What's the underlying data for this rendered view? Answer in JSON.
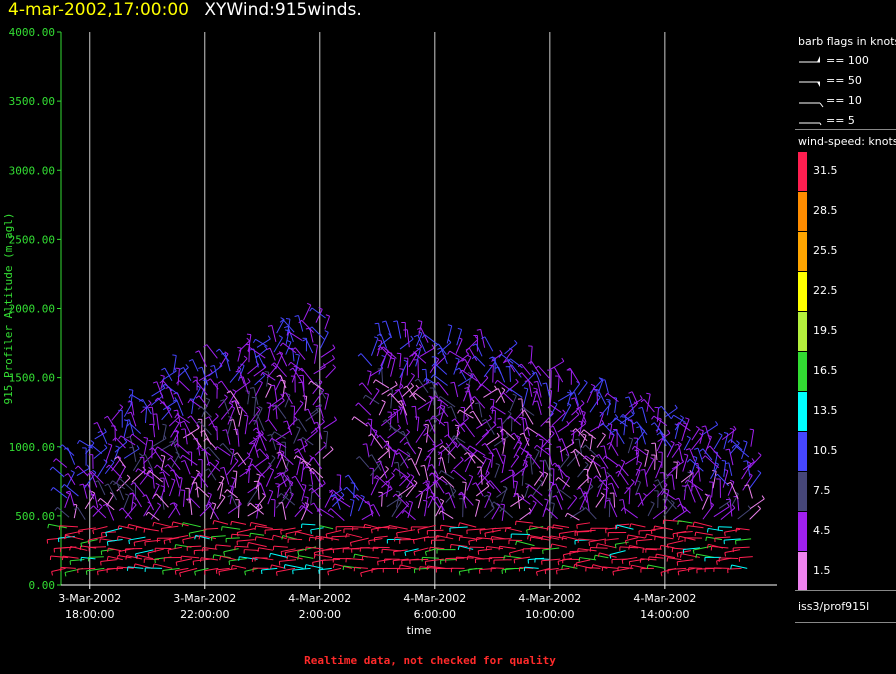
{
  "title": {
    "date": "4-mar-2002,17:00:00",
    "name": "XYWind:915winds."
  },
  "chart_data": {
    "type": "wind-barb profile",
    "ylabel": "915 Profiler Altitude (m agl)",
    "xlabel": "time",
    "ylim": [
      0,
      4000
    ],
    "yticks": [
      "0.00",
      "500.00",
      "1000.00",
      "1500.00",
      "2000.00",
      "2500.00",
      "3000.00",
      "3500.00",
      "4000.00"
    ],
    "x_range_hours": [
      -1.0,
      23.9
    ],
    "xticks": [
      {
        "hour": 0,
        "date": "3-Mar-2002",
        "time": "18:00:00"
      },
      {
        "hour": 4,
        "date": "3-Mar-2002",
        "time": "22:00:00"
      },
      {
        "hour": 8,
        "date": "4-Mar-2002",
        "time": "2:00:00"
      },
      {
        "hour": 12,
        "date": "4-Mar-2002",
        "time": "6:00:00"
      },
      {
        "hour": 16,
        "date": "4-Mar-2002",
        "time": "10:00:00"
      },
      {
        "hour": 20,
        "date": "4-Mar-2002",
        "time": "14:00:00"
      }
    ],
    "grid": "vertical at x ticks",
    "speed_scale": [
      {
        "label": "31.5",
        "color": "#ff1e50"
      },
      {
        "label": "28.5",
        "color": "#ff8c00"
      },
      {
        "label": "25.5",
        "color": "#ffa500"
      },
      {
        "label": "22.5",
        "color": "#ffff00"
      },
      {
        "label": "19.5",
        "color": "#b4f03c"
      },
      {
        "label": "16.5",
        "color": "#32dc32"
      },
      {
        "label": "13.5",
        "color": "#00ffff"
      },
      {
        "label": "10.5",
        "color": "#4646ff"
      },
      {
        "label": "7.5",
        "color": "#464678"
      },
      {
        "label": "4.5",
        "color": "#a020f0"
      },
      {
        "label": "1.5",
        "color": "#ee82ee"
      }
    ]
  },
  "legend": {
    "barb_title": "barb flags in knots",
    "barb_items": [
      "== 100",
      "== 50",
      "== 10",
      "== 5"
    ],
    "speed_title": "wind-speed: knots",
    "station": "iss3/prof915l"
  },
  "footer": "Realtime data, not checked for quality"
}
